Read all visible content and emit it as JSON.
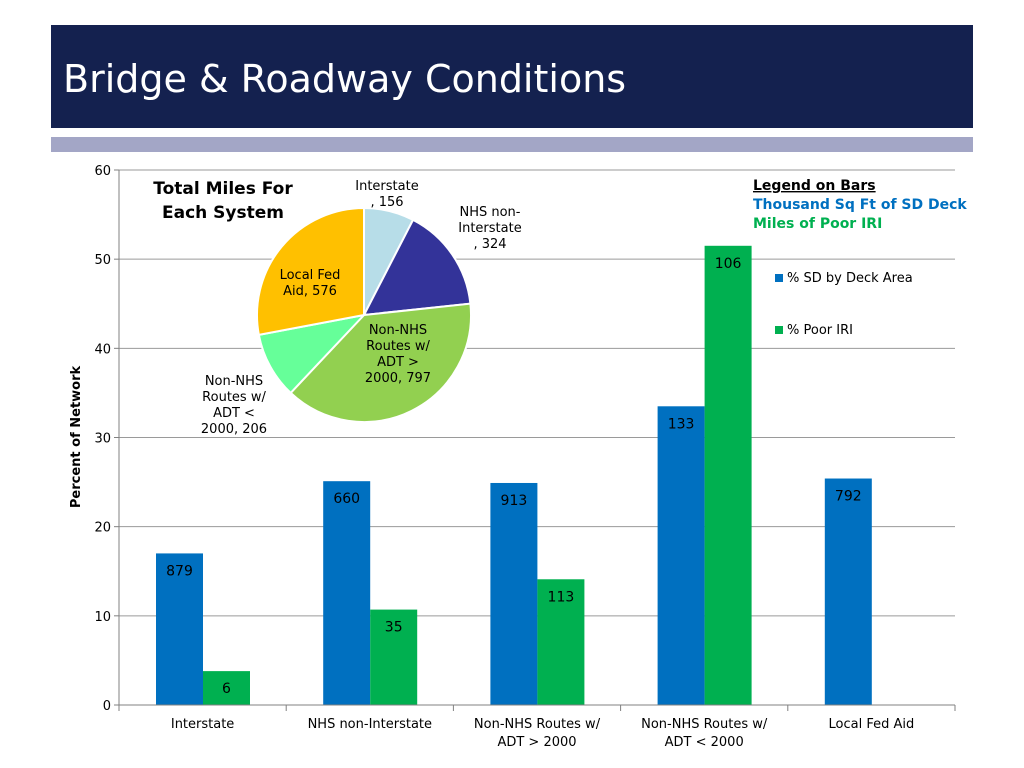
{
  "slide": {
    "title": "Bridge & Roadway Conditions"
  },
  "colors": {
    "title_bar": "#14214f",
    "accent_strip": "#a3a6c6",
    "sd_deck": "#0070c0",
    "poor_iri": "#00b050"
  },
  "chart_data": [
    {
      "type": "bar",
      "ylabel": "Percent of Network",
      "xlabel": "",
      "ylim": [
        0,
        60
      ],
      "yticks": [
        0,
        10,
        20,
        30,
        40,
        50,
        60
      ],
      "grid": true,
      "legend_position": "right",
      "categories": [
        "Interstate",
        "NHS non-Interstate",
        "Non-NHS Routes w/ ADT > 2000",
        "Non-NHS Routes w/ ADT < 2000",
        "Local Fed Aid"
      ],
      "series": [
        {
          "name": "% SD by Deck Area",
          "color": "#0070c0",
          "values": [
            17,
            25.1,
            24.9,
            33.5,
            25.4
          ],
          "data_labels": [
            "879",
            "660",
            "913",
            "133",
            "792"
          ]
        },
        {
          "name": "% Poor IRI",
          "color": "#00b050",
          "values": [
            3.8,
            10.7,
            14.1,
            51.5,
            null
          ],
          "data_labels": [
            "6",
            "35",
            "113",
            "106",
            ""
          ]
        }
      ],
      "annotation": {
        "heading": "Legend on Bars",
        "line1": "Thousand Sq Ft of SD Deck",
        "line2": "Miles of Poor IRI"
      }
    },
    {
      "type": "pie",
      "title": "Total Miles For Each System",
      "slices": [
        {
          "label": "Interstate",
          "value": 156,
          "color": "#b7dde8"
        },
        {
          "label": "NHS non-Interstate",
          "value": 324,
          "color": "#333399"
        },
        {
          "label": "Non-NHS Routes w/ ADT > 2000",
          "value": 797,
          "color": "#92d050"
        },
        {
          "label": "Non-NHS Routes w/ ADT < 2000",
          "value": 206,
          "color": "#66ff99"
        },
        {
          "label": "Local Fed Aid",
          "value": 576,
          "color": "#ffc000"
        }
      ]
    }
  ]
}
